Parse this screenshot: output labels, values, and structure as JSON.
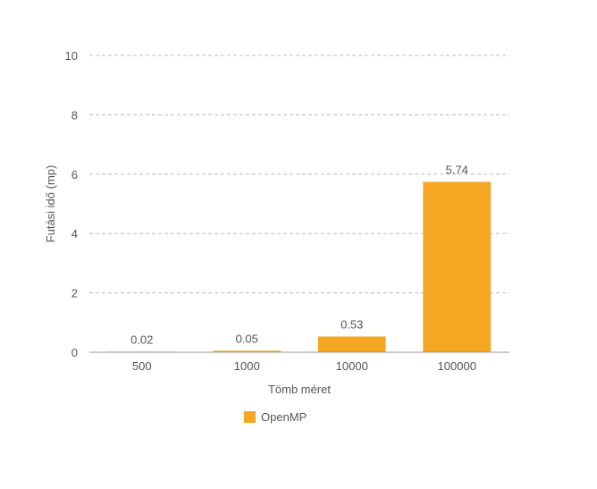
{
  "chart_data": {
    "type": "bar",
    "categories": [
      "500",
      "1000",
      "10000",
      "100000"
    ],
    "series": [
      {
        "name": "OpenMP",
        "values": [
          0.02,
          0.05,
          0.53,
          5.74
        ],
        "color": "#f5a623"
      }
    ],
    "data_labels": [
      "0.02",
      "0.05",
      "0.53",
      "5.74"
    ],
    "xlabel": "Tömb méret",
    "ylabel": "Futási idő (mp)",
    "ylim": [
      0,
      10
    ],
    "yticks": [
      "0",
      "2",
      "4",
      "6",
      "8",
      "10"
    ],
    "grid": true,
    "legend_position": "bottom-left"
  }
}
